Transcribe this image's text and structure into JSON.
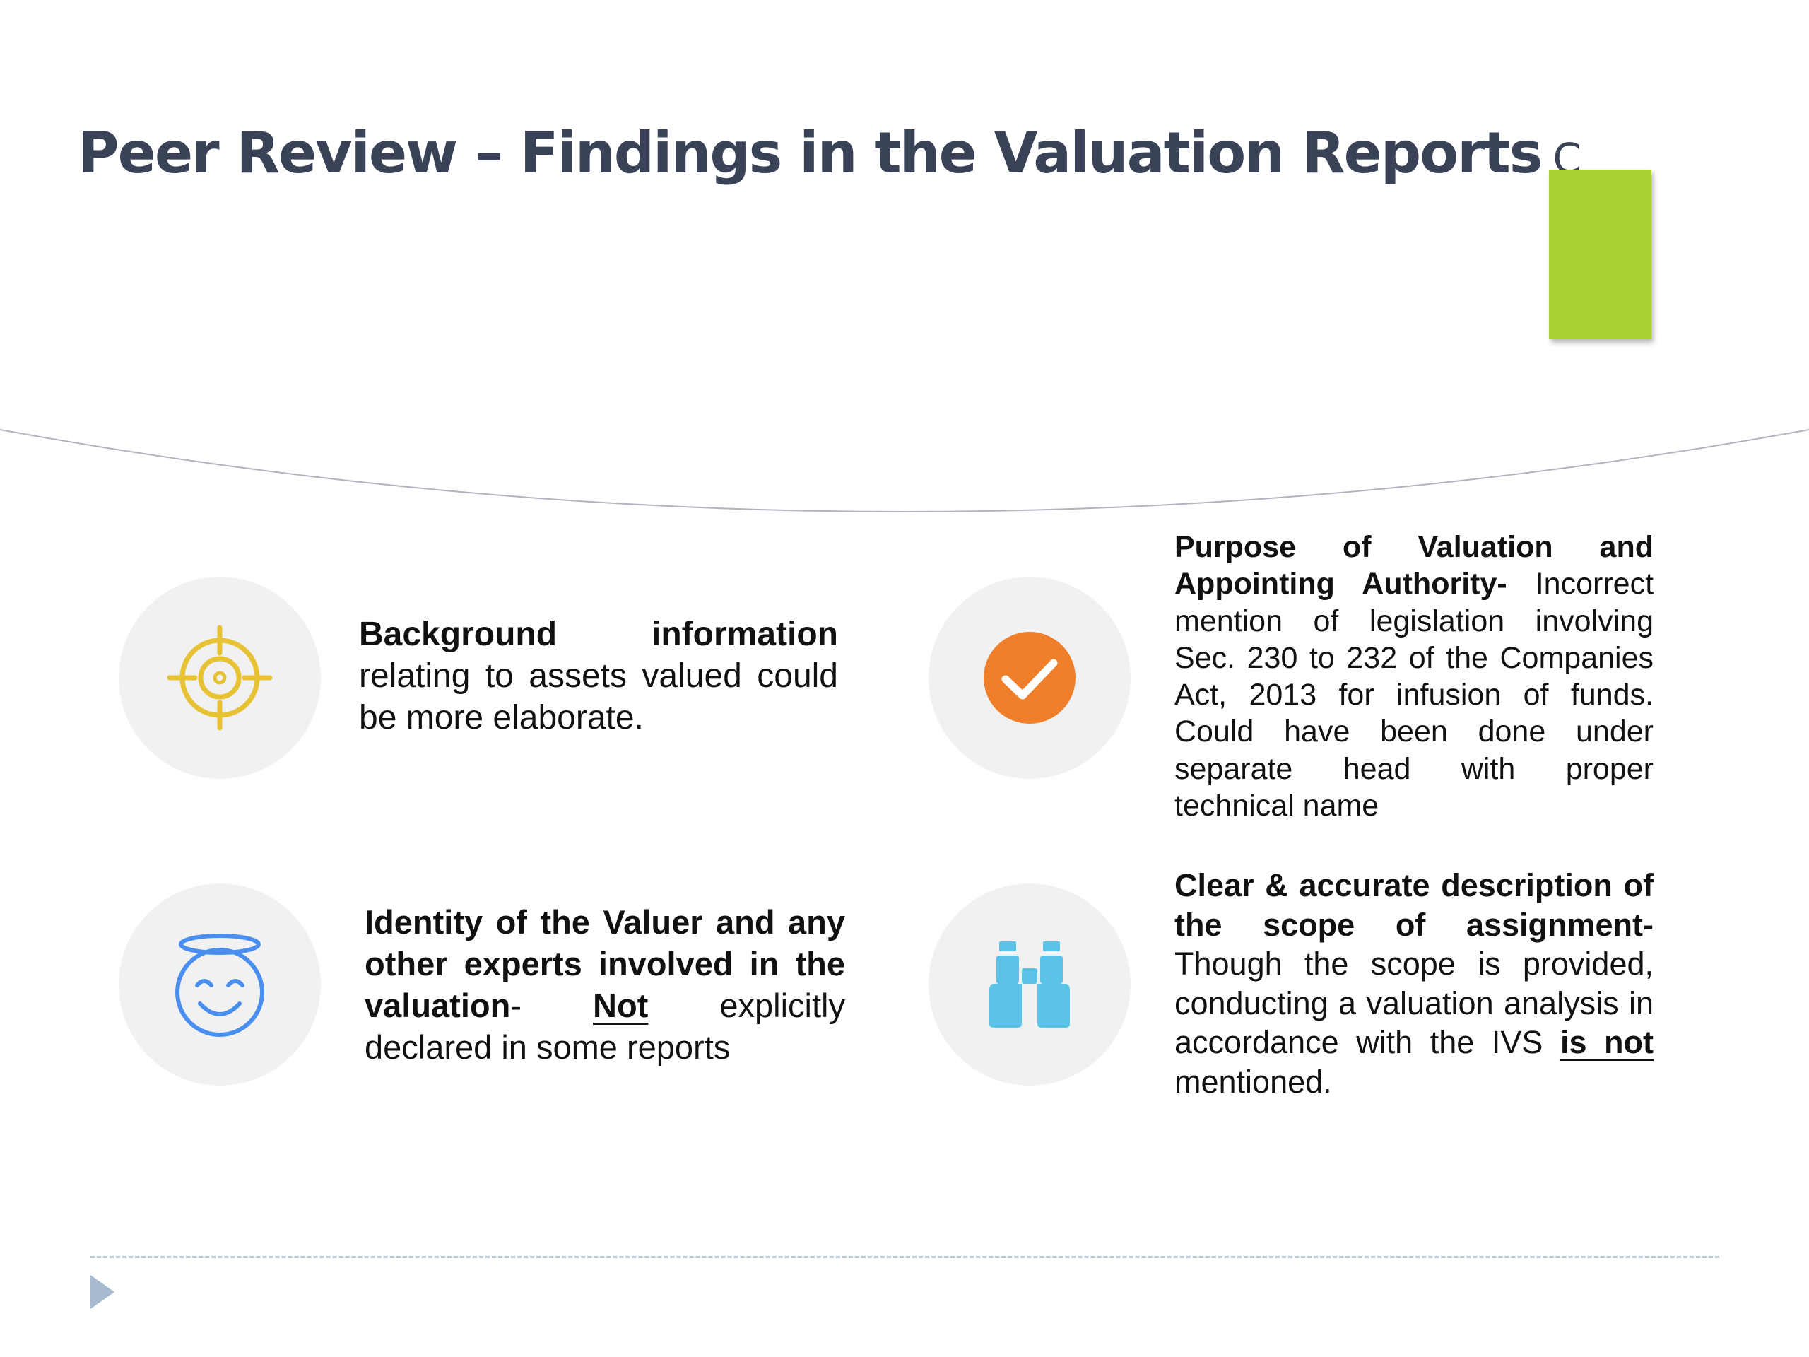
{
  "slide": {
    "title": "Peer Review – Findings in the Valuation Reports",
    "title_suffix": "C",
    "accent_color": "#a8cf34"
  },
  "findings": [
    {
      "icon": "target-icon",
      "icon_color": "#e6c234",
      "bold": "Background information",
      "text": "relating to assets valued could be more elaborate."
    },
    {
      "icon": "check-circle-icon",
      "icon_color": "#ef7f2a",
      "bold": "Purpose of Valuation and Appointing Authority-",
      "text": "Incorrect mention of legislation involving Sec. 230 to 232 of the Companies Act, 2013 for infusion of funds. Could have been done under separate head with proper technical name"
    },
    {
      "icon": "smiley-halo-icon",
      "icon_color": "#4a8ff0",
      "bold": "Identity of the Valuer and any other experts involved in the valuation",
      "dash": "-",
      "underlined": "Not",
      "text": "explicitly declared in some reports"
    },
    {
      "icon": "binoculars-icon",
      "icon_color": "#5bc3e6",
      "bold": "Clear & accurate description of the scope of assignment-",
      "text": "Though the scope is provided, conducting a valuation analysis in accordance with the IVS",
      "underlined": "is not",
      "text_end": "mentioned."
    }
  ]
}
